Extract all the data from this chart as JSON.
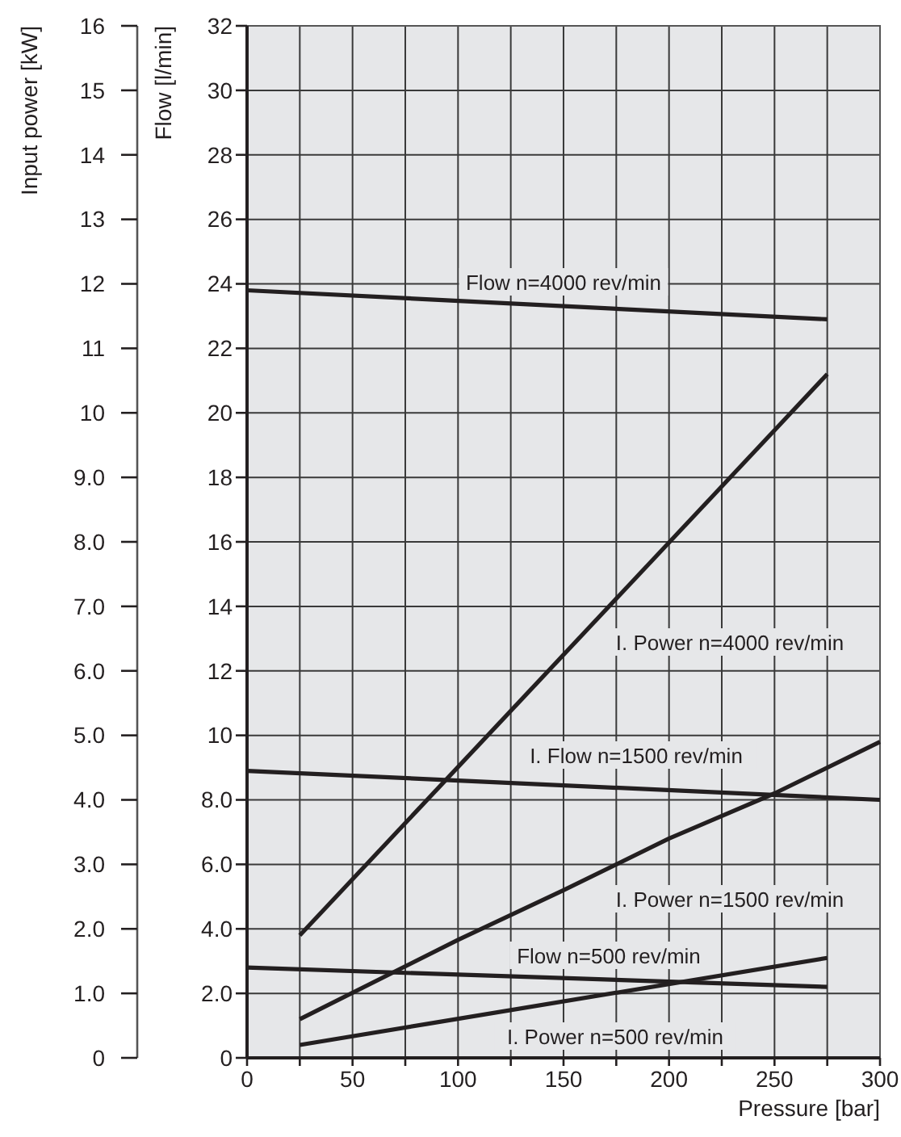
{
  "chart_data": {
    "type": "line",
    "xlabel": "Pressure [bar]",
    "ylabel": "Flow [l/min]",
    "y2label": "Input power [kW]",
    "xlim": [
      0,
      300
    ],
    "xticks": [
      0,
      {
        "value": 25,
        "label": null
      },
      50,
      {
        "value": 75,
        "label": null
      },
      100,
      {
        "value": 125,
        "label": null
      },
      150,
      {
        "value": 175,
        "label": null
      },
      200,
      {
        "value": 225,
        "label": null
      },
      250,
      {
        "value": 275,
        "label": null
      },
      300
    ],
    "ylim": [
      0,
      32
    ],
    "yticks": [
      0,
      {
        "value": 2,
        "label": "2.0"
      },
      {
        "value": 4,
        "label": "4.0"
      },
      {
        "value": 6,
        "label": "6.0"
      },
      {
        "value": 8,
        "label": "8.0"
      },
      10,
      12,
      14,
      16,
      18,
      20,
      22,
      24,
      26,
      28,
      30,
      32
    ],
    "y2lim": [
      0,
      16
    ],
    "y2ticks": [
      0,
      {
        "value": 1,
        "label": "1.0"
      },
      {
        "value": 2,
        "label": "2.0"
      },
      {
        "value": 3,
        "label": "3.0"
      },
      {
        "value": 4,
        "label": "4.0"
      },
      {
        "value": 5,
        "label": "5.0"
      },
      {
        "value": 6,
        "label": "6.0"
      },
      {
        "value": 7,
        "label": "7.0"
      },
      {
        "value": 8,
        "label": "8.0"
      },
      {
        "value": 9,
        "label": "9.0"
      },
      10,
      11,
      12,
      13,
      14,
      15,
      16
    ],
    "grid": true,
    "marker": "none",
    "line_style": "solid",
    "series": [
      {
        "name": "Flow n=4000 rev/min",
        "color": "#231f20",
        "x": [
          0,
          275
        ],
        "values": [
          23.8,
          22.9
        ]
      },
      {
        "name": "I. Power n=4000 rev/min",
        "color": "#231f20",
        "axis": "y2",
        "x": [
          25,
          275
        ],
        "values": [
          1.9,
          10.6
        ]
      },
      {
        "name": "I. Flow n=1500 rev/min",
        "color": "#231f20",
        "x": [
          0,
          300
        ],
        "values": [
          8.9,
          8.0
        ]
      },
      {
        "name": "I. Power n=1500 rev/min",
        "color": "#231f20",
        "axis": "y2",
        "x": [
          25,
          100,
          150,
          200,
          250,
          300
        ],
        "values": [
          0.6,
          1.83,
          2.6,
          3.4,
          4.1,
          4.9
        ]
      },
      {
        "name": "Flow n=500 rev/min",
        "color": "#231f20",
        "x": [
          0,
          275
        ],
        "values": [
          2.8,
          2.2
        ]
      },
      {
        "name": "I. Power n=500 rev/min",
        "color": "#231f20",
        "axis": "y2",
        "x": [
          25,
          275
        ],
        "values": [
          0.2,
          1.55
        ]
      }
    ]
  }
}
